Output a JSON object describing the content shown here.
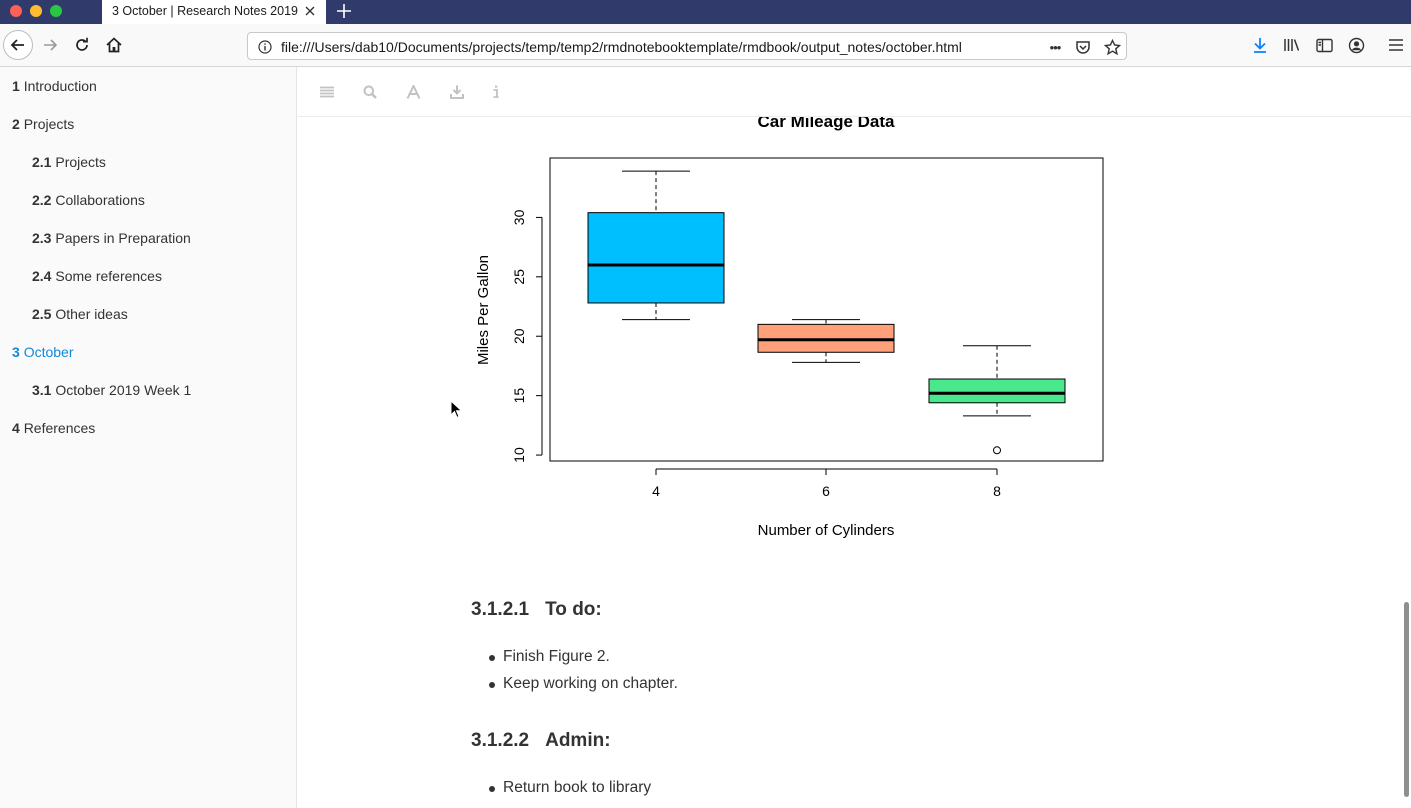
{
  "browser": {
    "tab_title": "3 October | Research Notes 2019",
    "url": "file:///Users/dab10/Documents/projects/temp/temp2/rmdnotebooktemplate/rmdbook/output_notes/october.html",
    "more_label": "•••"
  },
  "toc": [
    {
      "num": "1",
      "label": "Introduction"
    },
    {
      "num": "2",
      "label": "Projects"
    },
    {
      "num": "2.1",
      "label": "Projects"
    },
    {
      "num": "2.2",
      "label": "Collaborations"
    },
    {
      "num": "2.3",
      "label": "Papers in Preparation"
    },
    {
      "num": "2.4",
      "label": "Some references"
    },
    {
      "num": "2.5",
      "label": "Other ideas"
    },
    {
      "num": "3",
      "label": "October"
    },
    {
      "num": "3.1",
      "label": "October 2019 Week 1"
    },
    {
      "num": "4",
      "label": "References"
    }
  ],
  "chart_data": {
    "type": "boxplot",
    "title": "Car Mileage Data",
    "xlabel": "Number of Cylinders",
    "ylabel": "Miles Per Gallon",
    "categories": [
      "4",
      "6",
      "8"
    ],
    "yticks": [
      "10",
      "15",
      "20",
      "25",
      "30"
    ],
    "ylim": [
      9.5,
      35
    ],
    "boxes": [
      {
        "category": "4",
        "min": 21.4,
        "q1": 22.8,
        "median": 26.0,
        "q3": 30.4,
        "max": 33.9,
        "outliers": [],
        "color": "#00bfff"
      },
      {
        "category": "6",
        "min": 17.8,
        "q1": 18.65,
        "median": 19.7,
        "q3": 21.0,
        "max": 21.4,
        "outliers": [],
        "color": "#ffa07a"
      },
      {
        "category": "8",
        "min": 13.3,
        "q1": 14.4,
        "median": 15.2,
        "q3": 16.4,
        "max": 19.2,
        "outliers": [
          10.4
        ],
        "color": "#4ae88c"
      }
    ]
  },
  "sections": {
    "todo": {
      "num": "3.1.2.1",
      "title": "To do:",
      "items": [
        "Finish Figure 2.",
        "Keep working on chapter."
      ]
    },
    "admin": {
      "num": "3.1.2.2",
      "title": "Admin:",
      "items": [
        "Return book to library"
      ]
    }
  }
}
